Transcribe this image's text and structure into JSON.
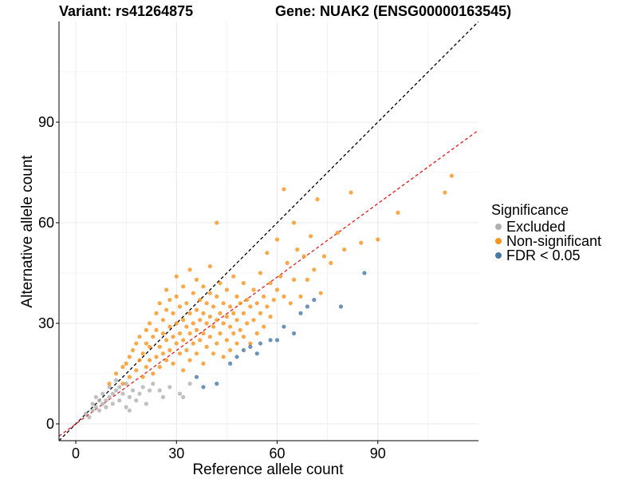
{
  "title_left": "Variant: rs41264875",
  "title_right": "Gene: NUAK2 (ENSG00000163545)",
  "legend": {
    "title": "Significance",
    "items": [
      {
        "label": "Excluded",
        "color": "#b0b0b0"
      },
      {
        "label": "Non-significant",
        "color": "#f7941d"
      },
      {
        "label": "FDR < 0.05",
        "color": "#4a78a8"
      }
    ]
  },
  "chart_data": {
    "type": "scatter",
    "xlabel": "Reference allele count",
    "ylabel": "Alternative allele count",
    "xlim": [
      -5,
      120
    ],
    "ylim": [
      -5,
      120
    ],
    "xticks": [
      0,
      30,
      60,
      90
    ],
    "yticks": [
      0,
      30,
      60,
      90
    ],
    "grid": true,
    "legend_position": "right",
    "reference_lines": [
      {
        "name": "identity",
        "slope": 1.0,
        "intercept": 0,
        "color": "#000000",
        "dash": true
      },
      {
        "name": "fitted",
        "slope": 0.73,
        "intercept": 0,
        "color": "#e41a1c",
        "dash": true
      }
    ],
    "series": [
      {
        "name": "Excluded",
        "color": "#b0b0b0",
        "points": [
          [
            3,
            3
          ],
          [
            4,
            2
          ],
          [
            5,
            4
          ],
          [
            5,
            6
          ],
          [
            6,
            5
          ],
          [
            6,
            8
          ],
          [
            7,
            4
          ],
          [
            7,
            7
          ],
          [
            8,
            6
          ],
          [
            8,
            9
          ],
          [
            9,
            7
          ],
          [
            9,
            5
          ],
          [
            10,
            8
          ],
          [
            10,
            11
          ],
          [
            11,
            9
          ],
          [
            11,
            6
          ],
          [
            12,
            10
          ],
          [
            12,
            13
          ],
          [
            13,
            7
          ],
          [
            13,
            11
          ],
          [
            14,
            9
          ],
          [
            15,
            5
          ],
          [
            15,
            12
          ],
          [
            16,
            8
          ],
          [
            16,
            4
          ],
          [
            17,
            10
          ],
          [
            18,
            7
          ],
          [
            19,
            9
          ],
          [
            20,
            11
          ],
          [
            21,
            6
          ],
          [
            22,
            10
          ],
          [
            23,
            12
          ],
          [
            25,
            10
          ],
          [
            26,
            8
          ],
          [
            28,
            11
          ],
          [
            31,
            9
          ],
          [
            32,
            8
          ],
          [
            34,
            12
          ]
        ]
      },
      {
        "name": "Non-significant",
        "color": "#f7941d",
        "points": [
          [
            10,
            12
          ],
          [
            12,
            15
          ],
          [
            14,
            12
          ],
          [
            14,
            17
          ],
          [
            15,
            18
          ],
          [
            16,
            14
          ],
          [
            16,
            20
          ],
          [
            17,
            22
          ],
          [
            18,
            16
          ],
          [
            18,
            24
          ],
          [
            19,
            19
          ],
          [
            19,
            26
          ],
          [
            20,
            14
          ],
          [
            20,
            21
          ],
          [
            21,
            17
          ],
          [
            21,
            24
          ],
          [
            21,
            28
          ],
          [
            22,
            19
          ],
          [
            22,
            23
          ],
          [
            22,
            30
          ],
          [
            23,
            15
          ],
          [
            23,
            26
          ],
          [
            24,
            20
          ],
          [
            24,
            33
          ],
          [
            24,
            28
          ],
          [
            25,
            17
          ],
          [
            25,
            23
          ],
          [
            25,
            36
          ],
          [
            26,
            21
          ],
          [
            26,
            27
          ],
          [
            26,
            31
          ],
          [
            27,
            19
          ],
          [
            27,
            25
          ],
          [
            27,
            34
          ],
          [
            27,
            40
          ],
          [
            28,
            22
          ],
          [
            28,
            29
          ],
          [
            28,
            37
          ],
          [
            29,
            18
          ],
          [
            29,
            26
          ],
          [
            29,
            33
          ],
          [
            30,
            24
          ],
          [
            30,
            30
          ],
          [
            30,
            38
          ],
          [
            30,
            44
          ],
          [
            31,
            21
          ],
          [
            31,
            27
          ],
          [
            31,
            35
          ],
          [
            32,
            16
          ],
          [
            32,
            25
          ],
          [
            32,
            31
          ],
          [
            32,
            41
          ],
          [
            33,
            22
          ],
          [
            33,
            29
          ],
          [
            33,
            36
          ],
          [
            34,
            19
          ],
          [
            34,
            27
          ],
          [
            34,
            33
          ],
          [
            34,
            46
          ],
          [
            35,
            24
          ],
          [
            35,
            30
          ],
          [
            35,
            39
          ],
          [
            36,
            21
          ],
          [
            36,
            28
          ],
          [
            36,
            34
          ],
          [
            36,
            43
          ],
          [
            37,
            25
          ],
          [
            37,
            31
          ],
          [
            37,
            37
          ],
          [
            38,
            18
          ],
          [
            38,
            27
          ],
          [
            38,
            33
          ],
          [
            38,
            41
          ],
          [
            39,
            23
          ],
          [
            39,
            30
          ],
          [
            39,
            36
          ],
          [
            40,
            26
          ],
          [
            40,
            32
          ],
          [
            40,
            39
          ],
          [
            40,
            47
          ],
          [
            41,
            21
          ],
          [
            41,
            29
          ],
          [
            41,
            35
          ],
          [
            42,
            24
          ],
          [
            42,
            31
          ],
          [
            42,
            38
          ],
          [
            42,
            60
          ],
          [
            43,
            27
          ],
          [
            43,
            33
          ],
          [
            43,
            42
          ],
          [
            44,
            20
          ],
          [
            44,
            30
          ],
          [
            44,
            36
          ],
          [
            45,
            25
          ],
          [
            45,
            32
          ],
          [
            45,
            40
          ],
          [
            46,
            22
          ],
          [
            46,
            29
          ],
          [
            46,
            35
          ],
          [
            47,
            27
          ],
          [
            47,
            33
          ],
          [
            47,
            44
          ],
          [
            48,
            24
          ],
          [
            48,
            31
          ],
          [
            48,
            38
          ],
          [
            49,
            28
          ],
          [
            49,
            36
          ],
          [
            50,
            26
          ],
          [
            50,
            33
          ],
          [
            50,
            42
          ],
          [
            51,
            30
          ],
          [
            51,
            37
          ],
          [
            52,
            24
          ],
          [
            52,
            35
          ],
          [
            53,
            31
          ],
          [
            53,
            40
          ],
          [
            54,
            27
          ],
          [
            54,
            36
          ],
          [
            55,
            33
          ],
          [
            55,
            45
          ],
          [
            56,
            29
          ],
          [
            56,
            38
          ],
          [
            57,
            35
          ],
          [
            57,
            51
          ],
          [
            58,
            32
          ],
          [
            58,
            42
          ],
          [
            59,
            37
          ],
          [
            60,
            40
          ],
          [
            60,
            55
          ],
          [
            61,
            44
          ],
          [
            62,
            70
          ],
          [
            62,
            38
          ],
          [
            63,
            48
          ],
          [
            64,
            36
          ],
          [
            65,
            60
          ],
          [
            65,
            43
          ],
          [
            66,
            52
          ],
          [
            67,
            38
          ],
          [
            68,
            50
          ],
          [
            69,
            43
          ],
          [
            70,
            56
          ],
          [
            71,
            46
          ],
          [
            72,
            67
          ],
          [
            73,
            39
          ],
          [
            74,
            50
          ],
          [
            76,
            48
          ],
          [
            78,
            57
          ],
          [
            80,
            52
          ],
          [
            82,
            69
          ],
          [
            85,
            54
          ],
          [
            90,
            55
          ],
          [
            96,
            63
          ],
          [
            110,
            69
          ],
          [
            112,
            74
          ]
        ]
      },
      {
        "name": "FDR < 0.05",
        "color": "#4a78a8",
        "points": [
          [
            36,
            14
          ],
          [
            38,
            11
          ],
          [
            42,
            12
          ],
          [
            46,
            18
          ],
          [
            48,
            20
          ],
          [
            50,
            22
          ],
          [
            52,
            23
          ],
          [
            54,
            21
          ],
          [
            55,
            24
          ],
          [
            58,
            25
          ],
          [
            60,
            25
          ],
          [
            62,
            29
          ],
          [
            65,
            27
          ],
          [
            67,
            33
          ],
          [
            69,
            35
          ],
          [
            71,
            37
          ],
          [
            79,
            35
          ],
          [
            86,
            45
          ]
        ]
      }
    ]
  }
}
